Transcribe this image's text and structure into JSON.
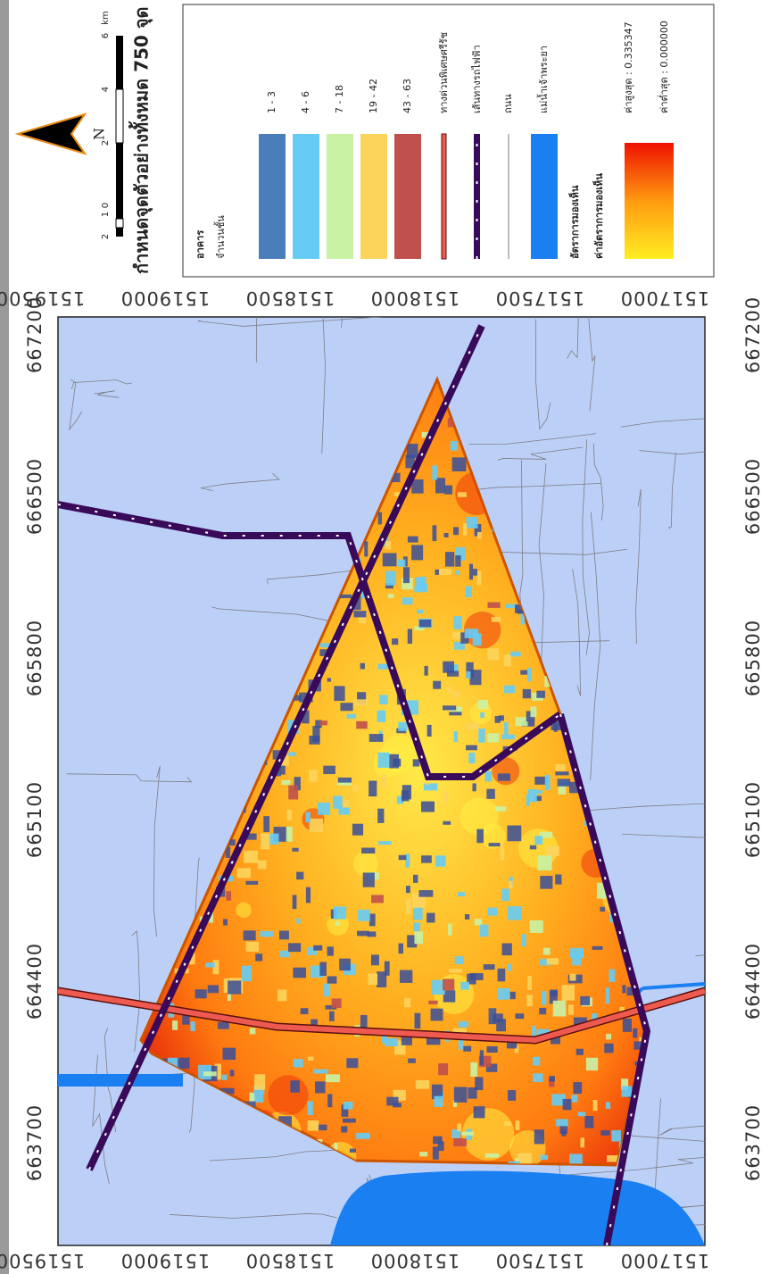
{
  "map": {
    "title": "กำหนดจุดตัวอย่างทั้งหมด 750 จุด",
    "north": "N",
    "scale_labels": [
      2,
      1,
      0,
      2,
      4,
      6
    ],
    "scale_unit": "km",
    "easting_ticks": [
      663700,
      664400,
      665100,
      665800,
      666500,
      667200
    ],
    "northing_ticks": [
      1517000,
      1517500,
      1518000,
      1518500,
      1519000,
      1519500
    ]
  },
  "legend": {
    "buildings_title": "อาคาร",
    "floors_title": "จำนวนชั้น",
    "floor_classes": [
      {
        "label": "1 - 3",
        "color": "#4a7ebb"
      },
      {
        "label": "4 - 6",
        "color": "#66ccf5"
      },
      {
        "label": "7 - 18",
        "color": "#c9f2a5"
      },
      {
        "label": "19 - 42",
        "color": "#fcd45c"
      },
      {
        "label": "43 - 63",
        "color": "#c0504d"
      }
    ],
    "expressway": "ทางด่วนพิเศษศรีรัช",
    "railway": "เส้นทางรถไฟฟ้า",
    "road": "ถนน",
    "river": "แม่น้ำเจ้าพระยา",
    "visibility_title": "อัตราการมองเห็น",
    "visibility_subtitle": "ค่าอัตราการมองเห็น",
    "high": "ค่าสูงสุด : 0.335347",
    "low": "ค่าต่ำสุด : 0.000000"
  }
}
